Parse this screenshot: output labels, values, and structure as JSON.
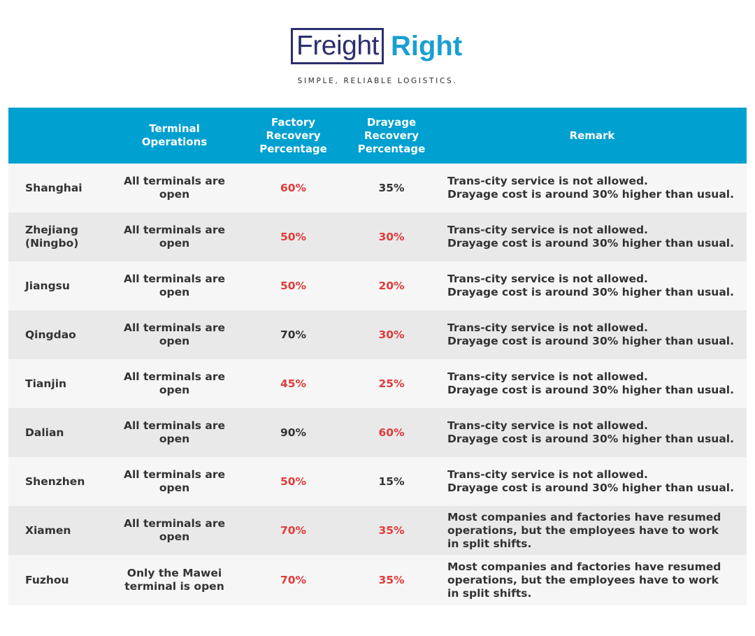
{
  "brand": {
    "name_part1": "Freight",
    "name_part2": "Right",
    "tagline": "SIMPLE, RELIABLE LOGISTICS.",
    "color_primary": "#2b2f6e",
    "color_accent": "#1a9fd0"
  },
  "table": {
    "header_color": "#00a0d1",
    "highlight_color": "#e23b3b",
    "headers": [
      "",
      "Terminal Operations",
      "Factory Recovery Percentage",
      "Drayage Recovery Percentage",
      "Remark"
    ],
    "rows": [
      {
        "city": "Shanghai",
        "terminal": "All terminals are open",
        "factory": "60%",
        "factory_highlight": true,
        "drayage": "35%",
        "drayage_highlight": false,
        "remark": "Trans-city service is not allowed.\nDrayage cost is around 30% higher than usual."
      },
      {
        "city": "Zhejiang (Ningbo)",
        "terminal": "All terminals are open",
        "factory": "50%",
        "factory_highlight": true,
        "drayage": "30%",
        "drayage_highlight": true,
        "remark": "Trans-city service is not allowed.\nDrayage cost is around 30% higher than usual."
      },
      {
        "city": "Jiangsu",
        "terminal": "All terminals are open",
        "factory": "50%",
        "factory_highlight": true,
        "drayage": "20%",
        "drayage_highlight": true,
        "remark": "Trans-city service is not allowed.\nDrayage cost is around 30% higher than usual."
      },
      {
        "city": "Qingdao",
        "terminal": "All terminals are open",
        "factory": "70%",
        "factory_highlight": false,
        "drayage": "30%",
        "drayage_highlight": true,
        "remark": "Trans-city service is not allowed.\nDrayage cost is around 30% higher than usual."
      },
      {
        "city": "Tianjin",
        "terminal": "All terminals are open",
        "factory": "45%",
        "factory_highlight": true,
        "drayage": "25%",
        "drayage_highlight": true,
        "remark": "Trans-city service is not allowed.\nDrayage cost is around 30% higher than usual."
      },
      {
        "city": "Dalian",
        "terminal": "All terminals are open",
        "factory": "90%",
        "factory_highlight": false,
        "drayage": "60%",
        "drayage_highlight": true,
        "remark": "Trans-city service is not allowed.\nDrayage cost is around 30% higher than usual."
      },
      {
        "city": "Shenzhen",
        "terminal": "All terminals are open",
        "factory": "50%",
        "factory_highlight": true,
        "drayage": "15%",
        "drayage_highlight": false,
        "remark": "Trans-city service is not allowed.\nDrayage cost is around 30% higher than usual."
      },
      {
        "city": "Xiamen",
        "terminal": "All terminals are open",
        "factory": "70%",
        "factory_highlight": true,
        "drayage": "35%",
        "drayage_highlight": true,
        "remark": "Most companies and factories have resumed\noperations, but the employees have to work\nin split shifts."
      },
      {
        "city": "Fuzhou",
        "terminal": "Only the Mawei\nterminal is open",
        "factory": "70%",
        "factory_highlight": true,
        "drayage": "35%",
        "drayage_highlight": true,
        "remark": "Most companies and factories have resumed\noperations, but the employees have to work\nin split shifts."
      }
    ]
  }
}
